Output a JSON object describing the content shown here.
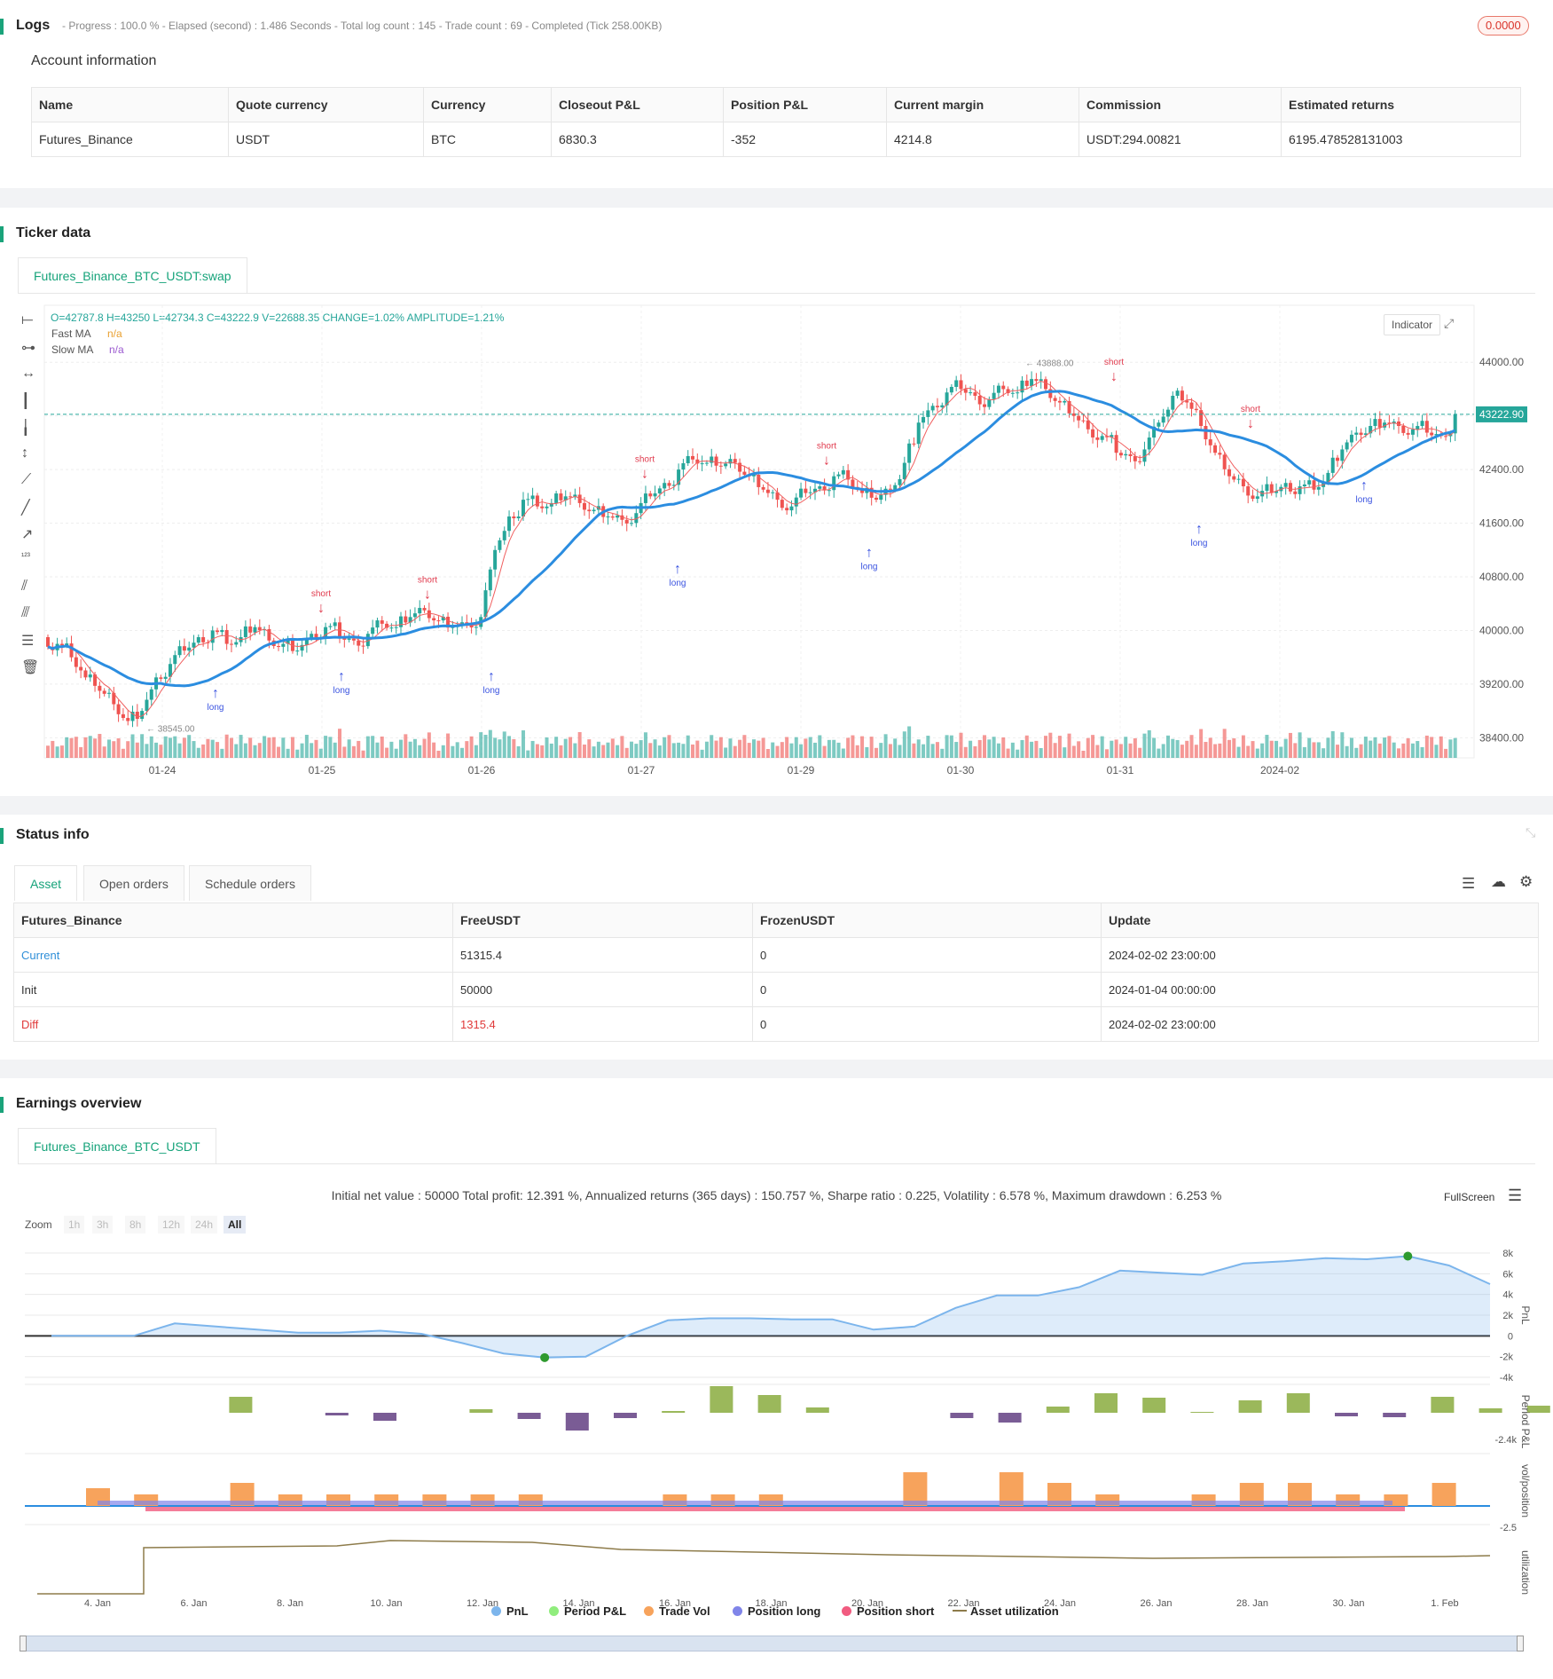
{
  "logs": {
    "title": "Logs",
    "progress_text": "- Progress : 100.0 % - Elapsed (second) : 1.486 Seconds - Total log count : 145 - Trade count : 69 - Completed (Tick 258.00KB)",
    "badge": "0.0000"
  },
  "account": {
    "title": "Account information",
    "headers": [
      "Name",
      "Quote currency",
      "Currency",
      "Closeout P&L",
      "Position P&L",
      "Current margin",
      "Commission",
      "Estimated returns"
    ],
    "row": [
      "Futures_Binance",
      "USDT",
      "BTC",
      "6830.3",
      "-352",
      "4214.8",
      "USDT:294.00821",
      "6195.478528131003"
    ]
  },
  "ticker": {
    "title": "Ticker data",
    "tab": "Futures_Binance_BTC_USDT:swap",
    "ohlc": "O=42787.8 H=43250 L=42734.3 C=43222.9 V=22688.35 CHANGE=1.02% AMPLITUDE=1.21%",
    "fast_ma_label": "Fast MA",
    "fast_ma_value": "n/a",
    "slow_ma_label": "Slow MA",
    "slow_ma_value": "n/a",
    "indicator_btn": "Indicator",
    "last_price": "43222.90",
    "high_mark": "43888.00",
    "low_mark": "38545.00",
    "colors": {
      "up": "#26a69a",
      "down": "#ef5350",
      "slow_ma": "#2b8de0",
      "fast_ma": "#f06060",
      "long": "#3a53e0",
      "short": "#e03a4d"
    }
  },
  "chart_data": [
    {
      "type": "candlestick",
      "y_ticks": [
        "44000.00",
        "43200.00",
        "42400.00",
        "41600.00",
        "40800.00",
        "40000.00",
        "39200.00",
        "38400.00"
      ],
      "ylim": [
        38100,
        44850
      ],
      "x_ticks": [
        "01-24",
        "01-25",
        "01-26",
        "01-27",
        "01-29",
        "01-30",
        "01-31",
        "2024-02"
      ],
      "close_series": [
        39800,
        39600,
        39300,
        39100,
        38900,
        38650,
        38800,
        39300,
        39500,
        39700,
        39900,
        40000,
        39800,
        39900,
        40050,
        39850,
        39800,
        39700,
        39950,
        40050,
        39900,
        39850,
        39950,
        40100,
        40050,
        40200,
        40300,
        40150,
        40050,
        40100,
        40200,
        41200,
        41700,
        41950,
        41850,
        41900,
        42000,
        41900,
        41800,
        41700,
        41650,
        41750,
        42000,
        42200,
        42400,
        42550,
        42500,
        42450,
        42500,
        42300,
        42100,
        41950,
        41850,
        42050,
        42150,
        42300,
        42250,
        42050,
        41950,
        42100,
        42500,
        43100,
        43350,
        43550,
        43600,
        43500,
        43450,
        43600,
        43550,
        43750,
        43600,
        43400,
        43200,
        43000,
        42900,
        42650,
        42600,
        42700,
        43100,
        43500,
        43400,
        43050,
        42650,
        42300,
        42150,
        42000,
        42050,
        42200,
        42150,
        42100,
        42350,
        42700,
        42950,
        43050,
        43100,
        43050,
        43000,
        42950,
        42900,
        43222
      ]
    },
    {
      "type": "area",
      "title": "Initial net value : 50000 Total profit: 12.391 %, Annualized returns (365 days) : 150.757 %, Sharpe ratio : 0.225, Volatility : 6.578 %, Maximum drawdown : 6.253 %",
      "series_name": "PnL",
      "y_ticks": [
        "8k",
        "6k",
        "4k",
        "2k",
        "0",
        "-2k",
        "-4k"
      ],
      "ylim": [
        -4000,
        8000
      ],
      "x_ticks": [
        "4. Jan",
        "6. Jan",
        "8. Jan",
        "10. Jan",
        "12. Jan",
        "14. Jan",
        "16. Jan",
        "18. Jan",
        "20. Jan",
        "22. Jan",
        "24. Jan",
        "26. Jan",
        "28. Jan",
        "30. Jan",
        "1. Feb"
      ],
      "values": [
        0,
        0,
        0,
        1200,
        900,
        600,
        300,
        300,
        500,
        200,
        -700,
        -1700,
        -2100,
        -2000,
        0,
        1500,
        1700,
        1700,
        1600,
        1600,
        600,
        900,
        2700,
        3900,
        3900,
        4700,
        6300,
        6100,
        5900,
        7000,
        7200,
        7500,
        7400,
        7700,
        6800,
        5000
      ]
    }
  ],
  "status": {
    "title": "Status info",
    "tabs": [
      "Asset",
      "Open orders",
      "Schedule orders"
    ],
    "headers": [
      "Futures_Binance",
      "FreeUSDT",
      "FrozenUSDT",
      "Update"
    ],
    "rows": [
      [
        "Current",
        "51315.4",
        "0",
        "2024-02-02 23:00:00"
      ],
      [
        "Init",
        "50000",
        "0",
        "2024-01-04 00:00:00"
      ],
      [
        "Diff",
        "1315.4",
        "0",
        "2024-02-02 23:00:00"
      ]
    ]
  },
  "earnings": {
    "title": "Earnings overview",
    "tab": "Futures_Binance_BTC_USDT",
    "fullscreen": "FullScreen",
    "zoom_label": "Zoom",
    "zoom_buttons": [
      "1h",
      "3h",
      "8h",
      "12h",
      "24h",
      "All"
    ],
    "axis_labels": [
      "PnL",
      "Period P&L",
      "vol/position",
      "utilization"
    ],
    "period_min": "-2.4k",
    "vol_min": "-2.5",
    "legend": [
      "PnL",
      "Period P&L",
      "Trade Vol",
      "Position long",
      "Position short",
      "Asset utilization"
    ],
    "legend_colors": [
      "#7cb5ec",
      "#90ed7d",
      "#f7a35c",
      "#8085e9",
      "#f15c80",
      "#8d7b4a"
    ]
  }
}
